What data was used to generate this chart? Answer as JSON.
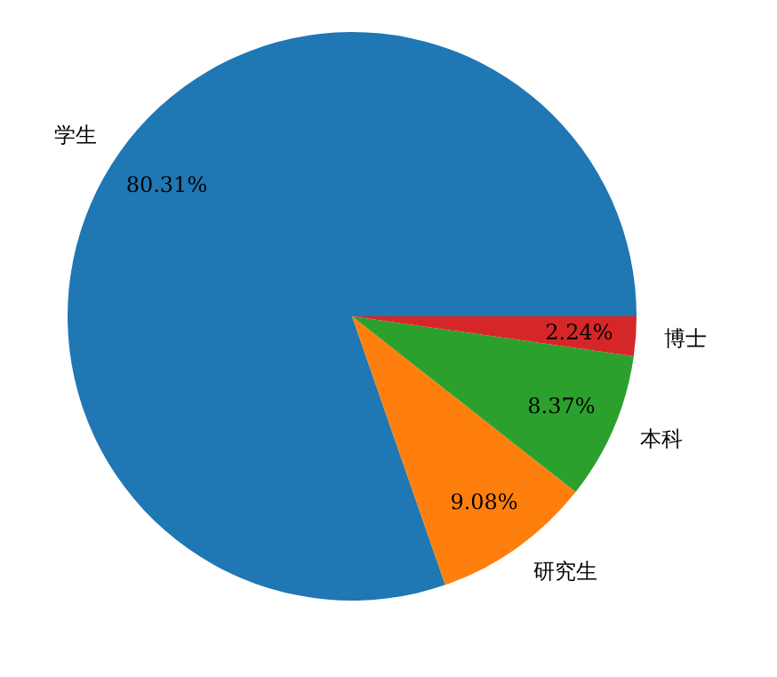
{
  "chart_data": {
    "type": "pie",
    "categories": [
      "学生",
      "研究生",
      "本科",
      "博士"
    ],
    "values": [
      80.31,
      9.08,
      8.37,
      2.24
    ],
    "colors": [
      "#1f77b4",
      "#ff7f0e",
      "#2ca02c",
      "#d62728"
    ],
    "value_labels": [
      "80.31%",
      "9.08%",
      "8.37%",
      "2.24%"
    ],
    "legend": false
  }
}
